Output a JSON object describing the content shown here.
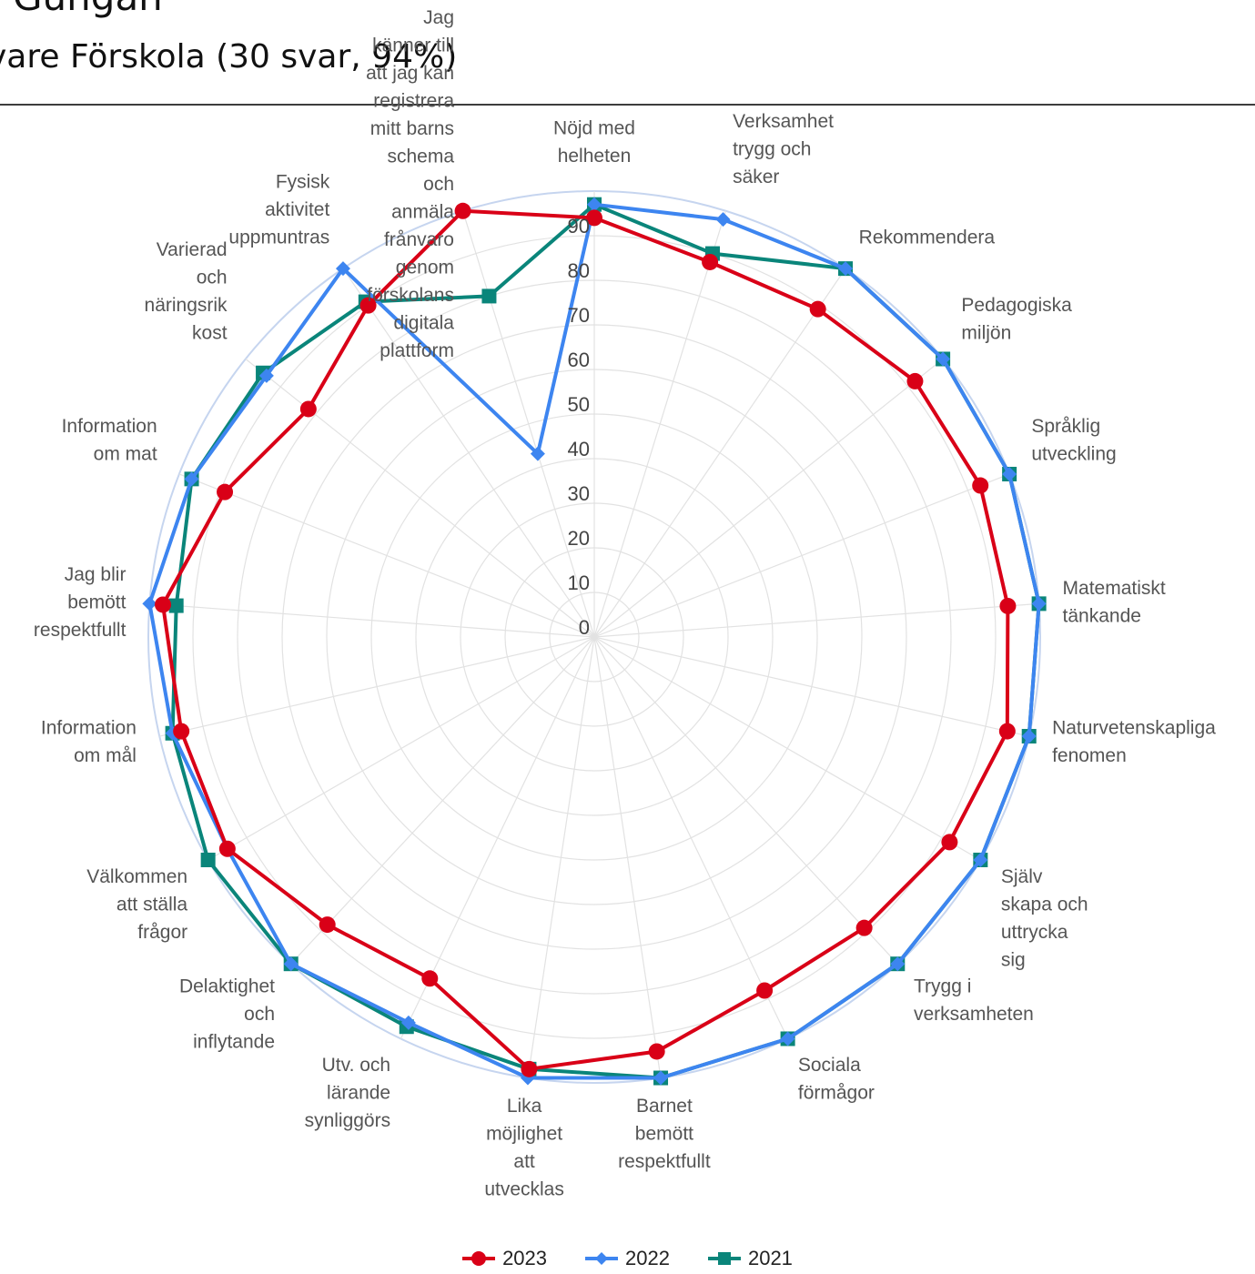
{
  "header": {
    "title": "Gungan",
    "subtitle": "vare Förskola  (30 svar, 94%)"
  },
  "colors": {
    "2023": "#d90017",
    "2022": "#3d85f0",
    "2021": "#0a857a",
    "grid": "#e2e2e2",
    "outer": "#c6d5ef"
  },
  "chart_data": {
    "type": "radar",
    "title": "",
    "rlim": [
      0,
      100
    ],
    "ticks": [
      0,
      10,
      20,
      30,
      40,
      50,
      60,
      70,
      80,
      90
    ],
    "grid": true,
    "legend_position": "bottom",
    "categories": [
      "Nöjd med helheten",
      "Verksamhet trygg och säker",
      "Rekommendera",
      "Pedagogiska miljön",
      "Språklig utveckling",
      "Matematiskt tänkande",
      "Naturvetenskapliga fenomen",
      "Själv skapa och uttrycka sig",
      "Trygg i verksamheten",
      "Sociala förmågor",
      "Barnet bemött respektfullt",
      "Lika möjlighet att utvecklas",
      "Utv. och lärande synliggörs",
      "Delaktighet och inflytande",
      "Välkommen att ställa frågor",
      "Information om mål",
      "Jag blir bemött respektfullt",
      "Information om mat",
      "Varierad och näringsrik kost",
      "Fysisk aktivitet uppmuntras",
      "Jag känner till att jag kan registrera mitt barns schema och anmäla frånvaro genom förskolans digitala plattform"
    ],
    "category_lines": [
      [
        "Nöjd med",
        "helheten"
      ],
      [
        "Verksamhet",
        "trygg och",
        "säker"
      ],
      [
        "Rekommendera"
      ],
      [
        "Pedagogiska",
        "miljön"
      ],
      [
        "Språklig",
        "utveckling"
      ],
      [
        "Matematiskt",
        "tänkande"
      ],
      [
        "Naturvetenskapliga",
        "fenomen"
      ],
      [
        "Själv",
        "skapa och",
        "uttrycka",
        "sig"
      ],
      [
        "Trygg i",
        "verksamheten"
      ],
      [
        "Sociala",
        "förmågor"
      ],
      [
        "Barnet",
        "bemött",
        "respektfullt"
      ],
      [
        "Lika",
        "möjlighet",
        "att",
        "utvecklas"
      ],
      [
        "Utv. och",
        "lärande",
        "synliggörs"
      ],
      [
        "Delaktighet",
        "och",
        "inflytande"
      ],
      [
        "Välkommen",
        "att ställa",
        "frågor"
      ],
      [
        "Information",
        "om mål"
      ],
      [
        "Jag blir",
        "bemött",
        "respektfullt"
      ],
      [
        "Information",
        "om mat"
      ],
      [
        "Varierad",
        "och",
        "näringsrik",
        "kost"
      ],
      [
        "Fysisk",
        "aktivitet",
        "uppmuntras"
      ],
      [
        "Jag",
        "känner till",
        "att jag kan",
        "registrera",
        "mitt barns",
        "schema",
        "och",
        "anmäla",
        "frånvaro",
        "genom",
        "förskolans",
        "digitala",
        "plattform"
      ]
    ],
    "series": [
      {
        "name": "2021",
        "marker": "square",
        "values": [
          97,
          90,
          100,
          100,
          100,
          100,
          100,
          100,
          100,
          100,
          100,
          98,
          97,
          100,
          100,
          97,
          94,
          97,
          95,
          91,
          80
        ]
      },
      {
        "name": "2022",
        "marker": "diamond",
        "values": [
          97,
          98,
          100,
          100,
          100,
          100,
          100,
          100,
          100,
          100,
          100,
          100,
          96,
          100,
          95,
          97,
          100,
          97,
          94,
          100,
          43
        ]
      },
      {
        "name": "2023",
        "marker": "circle",
        "values": [
          94,
          88,
          89,
          92,
          93,
          93,
          95,
          92,
          89,
          88,
          94,
          98,
          85,
          88,
          95,
          95,
          97,
          89,
          82,
          90,
          100
        ]
      }
    ]
  }
}
